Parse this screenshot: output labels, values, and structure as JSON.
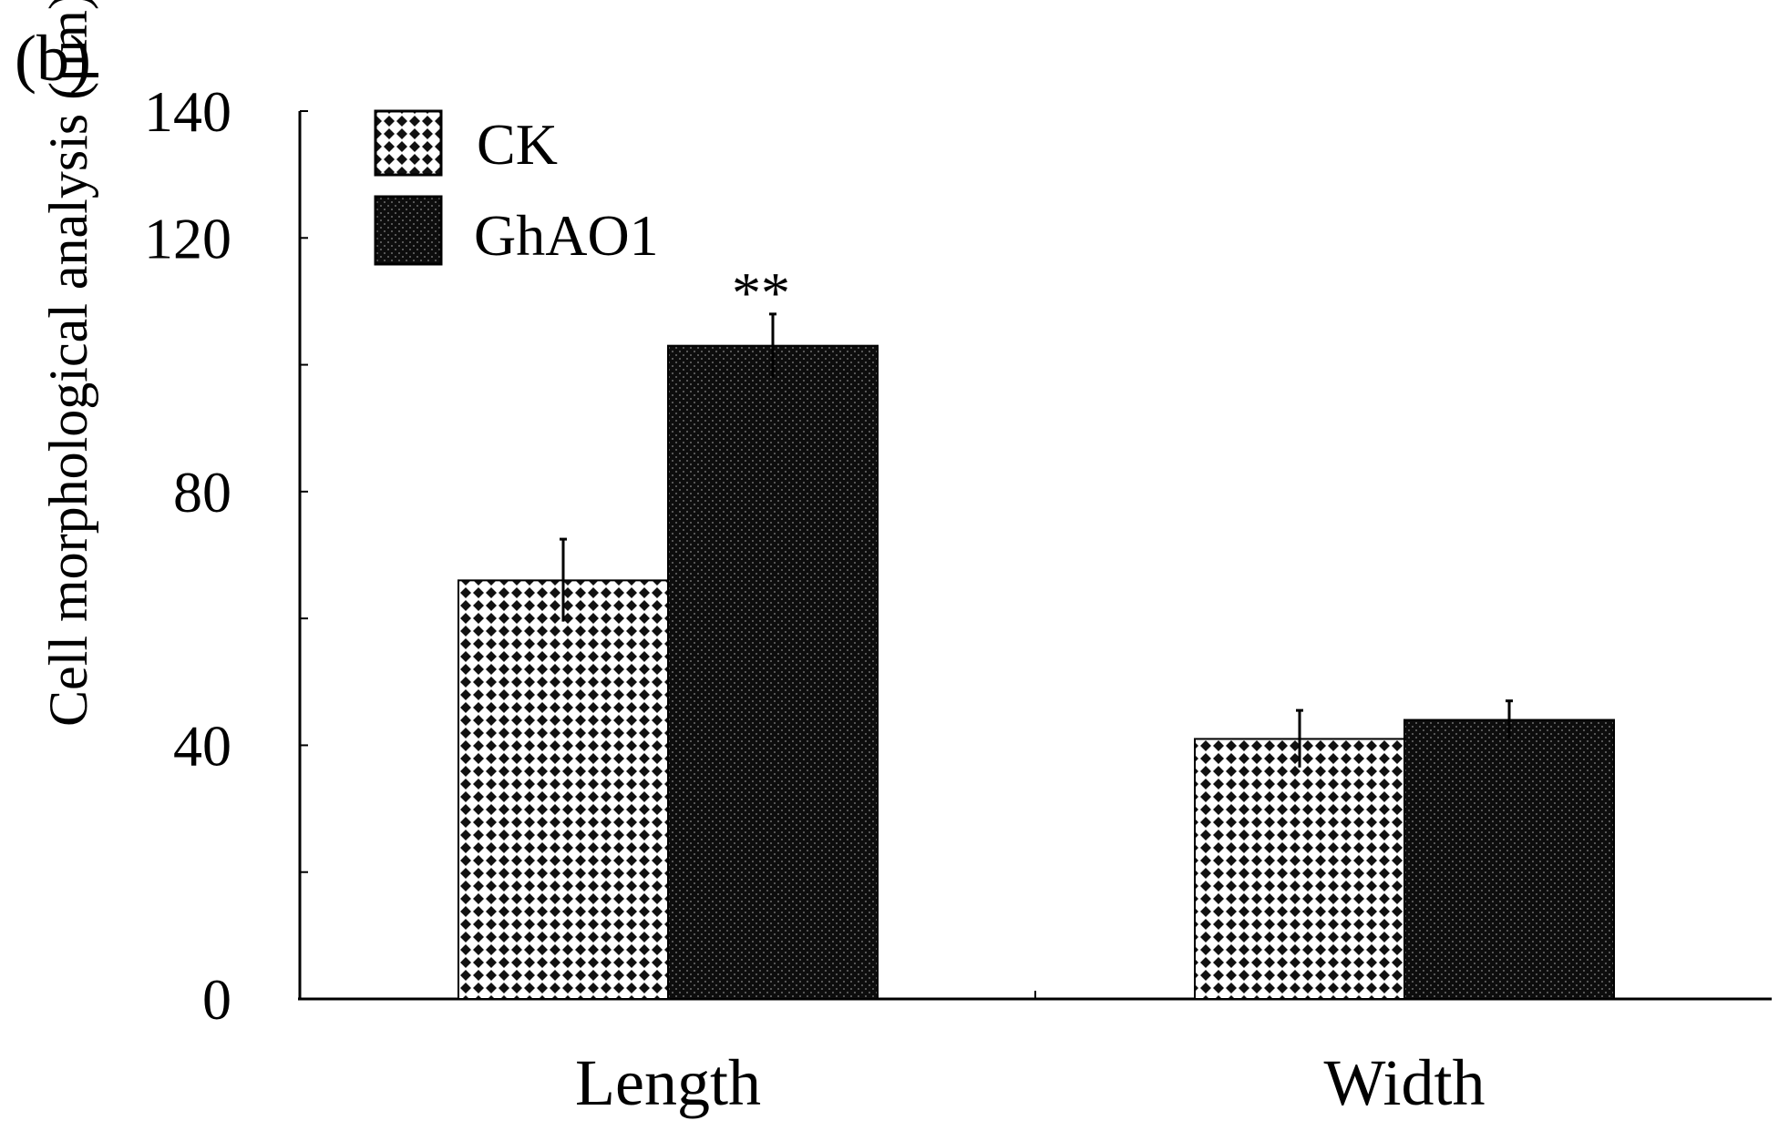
{
  "panel_label": "(b)",
  "chart_data": {
    "type": "bar",
    "title": "",
    "xlabel": "",
    "ylabel": "Cell morphological analysis (μm)",
    "categories": [
      "Length",
      "Width"
    ],
    "series": [
      {
        "name": "CK",
        "values": [
          66,
          41
        ],
        "errors": [
          6.5,
          4.5
        ],
        "pattern": "checker"
      },
      {
        "name": "GhAO1",
        "values": [
          103,
          44
        ],
        "errors": [
          5,
          3
        ],
        "pattern": "dotted-dark"
      }
    ],
    "significance": [
      {
        "category": "Length",
        "series": "GhAO1",
        "label": "**"
      }
    ],
    "ylim": [
      0,
      140
    ],
    "yticks_labeled": [
      0,
      40,
      80,
      120,
      140
    ],
    "yticks_minor": [
      20,
      60,
      100
    ],
    "grid": false,
    "legend_position": "top-left"
  }
}
